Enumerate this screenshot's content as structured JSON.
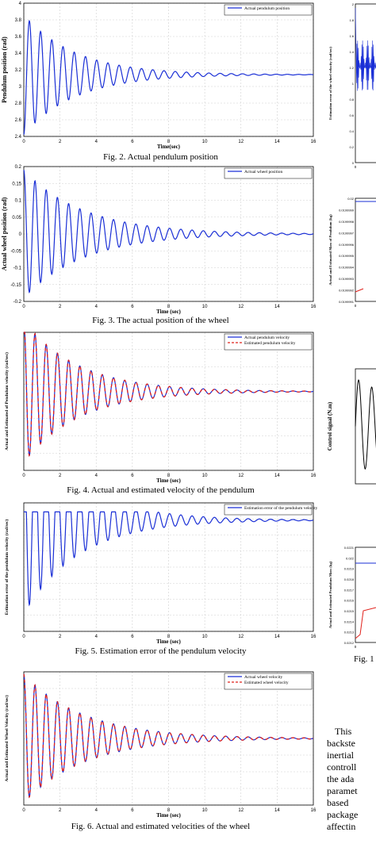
{
  "figures": [
    {
      "id": "fig2",
      "caption": "Fig. 2.  Actual pendulum position",
      "chart_data": {
        "type": "line",
        "ylabel": "Pendulum position (rad)",
        "xlabel": "Time(sec)",
        "xlim": [
          0,
          16
        ],
        "ylim": [
          2.4,
          4
        ],
        "xticks": [
          "0",
          "2",
          "4",
          "6",
          "8",
          "10",
          "12",
          "14",
          "16"
        ],
        "yticks": [
          "2.4",
          "2.6",
          "2.8",
          "3",
          "3.2",
          "3.4",
          "3.6",
          "3.8",
          "4"
        ],
        "grid": true,
        "legend_position": "top-right",
        "signal": {
          "offset": 3.1416,
          "amplitude": 0.72,
          "decay": 0.35,
          "period": 0.62,
          "phase": 3.1416
        },
        "series": [
          {
            "name": "Actual pendulum position",
            "color": "#1a2fd6",
            "style": "solid"
          }
        ]
      }
    },
    {
      "id": "fig3",
      "caption": "Fig. 3. The actual position of the wheel",
      "chart_data": {
        "type": "line",
        "ylabel": "Actual wheel position (rad)",
        "xlabel": "Time (sec)",
        "xlim": [
          0,
          16
        ],
        "ylim": [
          -0.2,
          0.2
        ],
        "xticks": [
          "0",
          "2",
          "4",
          "6",
          "8",
          "10",
          "12",
          "14",
          "16"
        ],
        "yticks": [
          "-0.2",
          "-0.15",
          "-0.1",
          "-0.05",
          "0",
          "0.05",
          "0.1",
          "0.15",
          "0.2"
        ],
        "grid": true,
        "legend_position": "top-right",
        "signal": {
          "offset": 0,
          "amplitude": 0.19,
          "decay": 0.3,
          "period": 0.62,
          "phase": 0
        },
        "series": [
          {
            "name": "Actual wheel position",
            "color": "#1a2fd6",
            "style": "solid"
          }
        ]
      }
    },
    {
      "id": "fig4",
      "caption": "Fig. 4. Actual and estimated velocity of the pendulum",
      "chart_data": {
        "type": "line",
        "ylabel": "Actual and Estimated of Pendulum velocity (rad/sec)",
        "xlabel": "Time (sec)",
        "xlim": [
          0,
          16
        ],
        "ylim": [
          -8,
          6
        ],
        "xticks": [
          "0",
          "2",
          "4",
          "6",
          "8",
          "10",
          "12",
          "14",
          "16"
        ],
        "yticks": [],
        "grid": true,
        "legend_position": "top-right",
        "signal": {
          "offset": 0,
          "amplitude": 7.2,
          "decay": 0.33,
          "period": 0.62,
          "phase": 0
        },
        "series": [
          {
            "name": "Actual pendulum velocity",
            "color": "#1a2fd6",
            "style": "solid"
          },
          {
            "name": "Estimated pendulum velocity",
            "color": "#e0201b",
            "style": "dashed"
          }
        ]
      }
    },
    {
      "id": "fig5",
      "caption": "Fig. 5. Estimation error of the pendulum velocity",
      "chart_data": {
        "type": "line",
        "ylabel": "Estimation error of the pendulum velocity (rad/sec)",
        "xlabel": "Time (sec)",
        "xlim": [
          0,
          16
        ],
        "ylim": [
          -1.6,
          0.25
        ],
        "xticks": [
          "0",
          "2",
          "4",
          "6",
          "8",
          "10",
          "12",
          "14",
          "16"
        ],
        "yticks": [],
        "grid": true,
        "legend_position": "top-right",
        "signal": {
          "offset": 0,
          "amplitude": 1.35,
          "decay": 0.33,
          "period": 0.62,
          "phase": 0,
          "clipTop": 0.12
        },
        "series": [
          {
            "name": "Estimation error of the pendulum velocity",
            "color": "#1a2fd6",
            "style": "solid"
          }
        ]
      }
    },
    {
      "id": "fig6",
      "caption": "Fig. 6. Actual and estimated velocities of the wheel",
      "chart_data": {
        "type": "line",
        "ylabel": "Actual and Estimated Wheel Velocity (rad/sec)",
        "xlabel": "Time (sec)",
        "xlim": [
          0,
          16
        ],
        "ylim": [
          -1.5,
          1.5
        ],
        "xticks": [
          "0",
          "2",
          "4",
          "6",
          "8",
          "10",
          "12",
          "14",
          "16"
        ],
        "yticks": [],
        "grid": true,
        "legend_position": "top-right",
        "signal": {
          "offset": 0,
          "amplitude": 1.45,
          "decay": 0.3,
          "period": 0.62,
          "phase": 0
        },
        "series": [
          {
            "name": "Actual wheel velocity",
            "color": "#1a2fd6",
            "style": "solid"
          },
          {
            "name": "Estimated wheel velocity",
            "color": "#e0201b",
            "style": "dashed"
          }
        ]
      }
    }
  ],
  "right_column": {
    "fig_labels": [
      {
        "ylabel": "Estimation error of the wheel velocity (rad/sec)",
        "yticks": [
          "2",
          "1.8",
          "1.6",
          "1.4",
          "1.2",
          "1",
          "0.8",
          "0.6",
          "0.4",
          "0.2",
          "0"
        ],
        "x0": "0"
      },
      {
        "ylabel": "Actual and Estimated Mass of Pendulum (kg)",
        "yticks": [
          "0.02",
          "0.0199999",
          "0.0199998",
          "0.0199997",
          "0.0199996",
          "0.0199995",
          "0.0199994",
          "0.0199993",
          "0.0199992",
          "0.0199991"
        ],
        "x0": "0"
      },
      {
        "ylabel": "Control signal (N.m)",
        "yticks": [],
        "x0": ""
      },
      {
        "ylabel": "Actual and Estimated Pendulum Mass (kg)",
        "yticks": [
          "0.0221",
          "0.022",
          "0.0219",
          "0.0218",
          "0.0217",
          "0.0216",
          "0.0215",
          "0.0214",
          "0.0213",
          "0.0212"
        ],
        "x0": "0"
      }
    ],
    "caption_fragment": "Fig. 1",
    "paragraph": [
      "This",
      "backste",
      "inertial",
      "controll",
      "the ada",
      "paramet",
      "based",
      "package",
      "affectin"
    ]
  },
  "colors": {
    "blue": "#1a2fd6",
    "red": "#e0201b",
    "grid": "#d0d0d0"
  }
}
